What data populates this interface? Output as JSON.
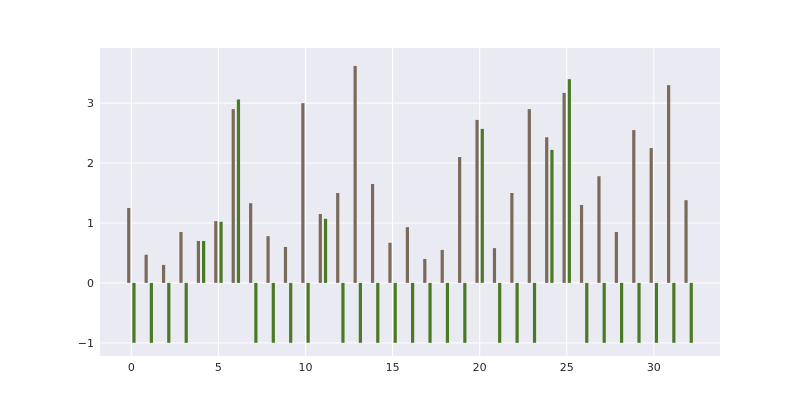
{
  "chart_data": {
    "type": "bar",
    "title": "",
    "xlabel": "",
    "ylabel": "",
    "xlim": [
      -1.8,
      33.8
    ],
    "ylim": [
      -1.22,
      3.92
    ],
    "grid": true,
    "x_ticks": [
      0,
      5,
      10,
      15,
      20,
      25,
      30
    ],
    "y_ticks": [
      -1,
      0,
      1,
      2,
      3
    ],
    "x_tick_labels": [
      "0",
      "5",
      "10",
      "15",
      "20",
      "25",
      "30"
    ],
    "y_tick_labels": [
      "−1",
      "0",
      "1",
      "2",
      "3"
    ],
    "x": [
      0,
      1,
      2,
      3,
      4,
      5,
      6,
      7,
      8,
      9,
      10,
      11,
      12,
      13,
      14,
      15,
      16,
      17,
      18,
      19,
      20,
      21,
      22,
      23,
      24,
      25,
      26,
      27,
      28,
      29,
      30,
      31,
      32
    ],
    "series": [
      {
        "color": "#7a6a5a",
        "values": [
          1.25,
          0.47,
          0.3,
          0.85,
          0.7,
          1.03,
          2.9,
          1.33,
          0.78,
          0.6,
          3.0,
          1.15,
          1.5,
          3.62,
          1.65,
          0.67,
          0.93,
          0.4,
          0.55,
          2.1,
          2.72,
          0.58,
          1.5,
          2.9,
          2.43,
          3.17,
          1.3,
          1.78,
          0.85,
          2.55,
          2.25,
          3.3,
          1.38
        ]
      },
      {
        "color": "#4a7a25",
        "values": [
          -1,
          -1,
          -1,
          -1,
          0.7,
          1.02,
          3.06,
          -1,
          -1,
          -1,
          -1,
          1.07,
          -1,
          -1,
          -1,
          -1,
          -1,
          -1,
          -1,
          -1,
          2.57,
          -1,
          -1,
          -1,
          2.22,
          3.4,
          -1,
          -1,
          -1,
          -1,
          -1,
          -1,
          -1
        ]
      }
    ]
  }
}
